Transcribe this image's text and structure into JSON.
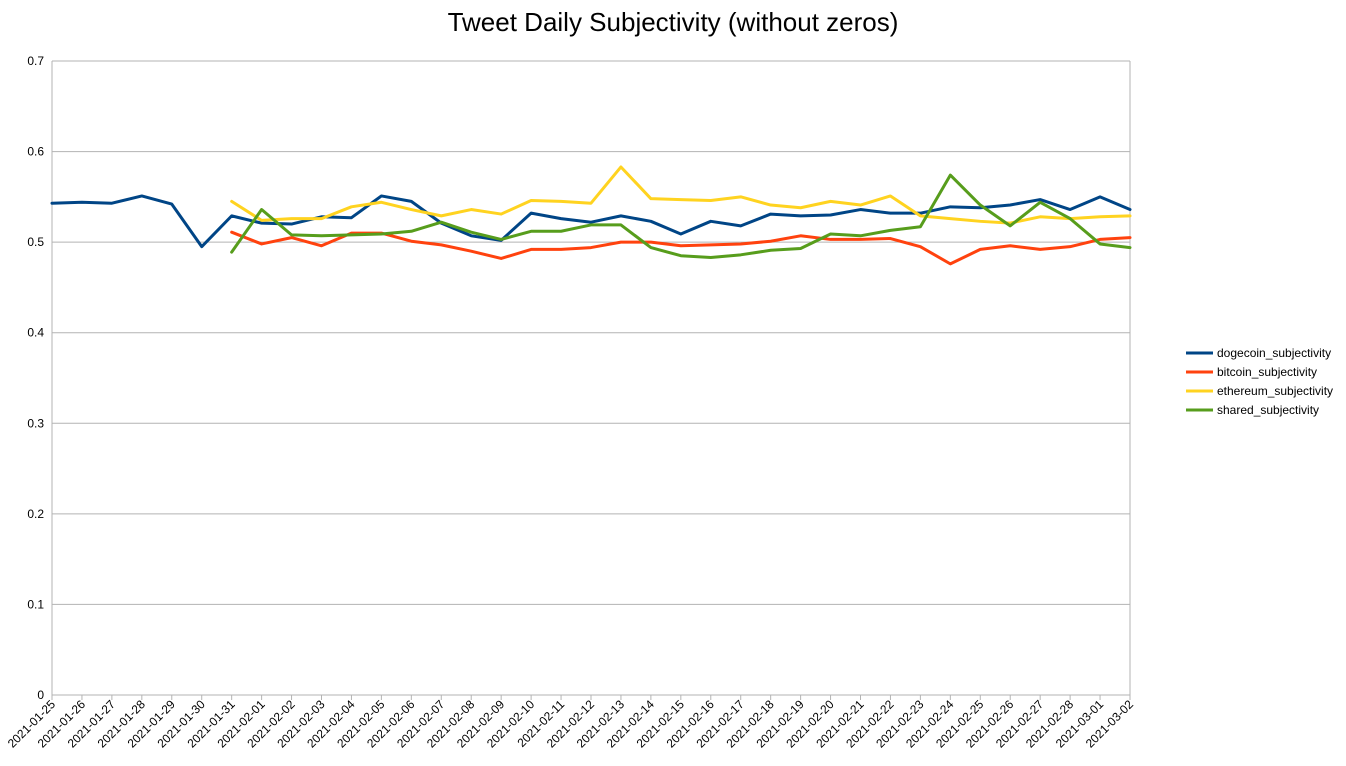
{
  "chart_data": {
    "type": "line",
    "title": "Tweet Daily Subjectivity (without zeros)",
    "xlabel": "",
    "ylabel": "",
    "ylim": [
      0,
      0.7
    ],
    "yticks": [
      "0",
      "0.1",
      "0.2",
      "0.3",
      "0.4",
      "0.5",
      "0.6",
      "0.7"
    ],
    "grid": true,
    "legend_position": "right",
    "categories": [
      "2021-01-25",
      "2021-01-26",
      "2021-01-27",
      "2021-01-28",
      "2021-01-29",
      "2021-01-30",
      "2021-01-31",
      "2021-02-01",
      "2021-02-02",
      "2021-02-03",
      "2021-02-04",
      "2021-02-05",
      "2021-02-06",
      "2021-02-07",
      "2021-02-08",
      "2021-02-09",
      "2021-02-10",
      "2021-02-11",
      "2021-02-12",
      "2021-02-13",
      "2021-02-14",
      "2021-02-15",
      "2021-02-16",
      "2021-02-17",
      "2021-02-18",
      "2021-02-19",
      "2021-02-20",
      "2021-02-21",
      "2021-02-22",
      "2021-02-23",
      "2021-02-24",
      "2021-02-25",
      "2021-02-26",
      "2021-02-27",
      "2021-02-28",
      "2021-03-01",
      "2021-03-02"
    ],
    "series": [
      {
        "name": "dogecoin_subjectivity",
        "color": "#004586",
        "values": [
          0.543,
          0.544,
          0.543,
          0.551,
          0.542,
          0.495,
          0.529,
          0.521,
          0.52,
          0.528,
          0.527,
          0.551,
          0.545,
          0.521,
          0.507,
          0.502,
          0.532,
          0.526,
          0.522,
          0.529,
          0.523,
          0.509,
          0.523,
          0.518,
          0.531,
          0.529,
          0.53,
          0.536,
          0.532,
          0.532,
          0.539,
          0.538,
          0.541,
          0.547,
          0.536,
          0.55,
          0.536
        ]
      },
      {
        "name": "bitcoin_subjectivity",
        "color": "#ff420e",
        "values": [
          null,
          null,
          null,
          null,
          null,
          null,
          0.511,
          0.498,
          0.505,
          0.496,
          0.51,
          0.51,
          0.501,
          0.497,
          0.49,
          0.482,
          0.492,
          0.492,
          0.494,
          0.5,
          0.5,
          0.496,
          0.497,
          0.498,
          0.501,
          0.507,
          0.503,
          0.503,
          0.504,
          0.495,
          0.476,
          0.492,
          0.496,
          0.492,
          0.495,
          0.503,
          0.505
        ]
      },
      {
        "name": "ethereum_subjectivity",
        "color": "#ffd320",
        "values": [
          null,
          null,
          null,
          null,
          null,
          null,
          0.545,
          0.524,
          0.526,
          0.526,
          0.539,
          0.544,
          0.536,
          0.529,
          0.536,
          0.531,
          0.546,
          0.545,
          0.543,
          0.583,
          0.548,
          0.547,
          0.546,
          0.55,
          0.541,
          0.538,
          0.545,
          0.541,
          0.551,
          0.529,
          0.526,
          0.523,
          0.521,
          0.528,
          0.526,
          0.528,
          0.529
        ]
      },
      {
        "name": "shared_subjectivity",
        "color": "#579d1c",
        "values": [
          null,
          null,
          null,
          null,
          null,
          null,
          0.489,
          0.536,
          0.508,
          0.507,
          0.508,
          0.509,
          0.512,
          0.522,
          0.511,
          0.503,
          0.512,
          0.512,
          0.519,
          0.519,
          0.494,
          0.485,
          0.483,
          0.486,
          0.491,
          0.493,
          0.509,
          0.507,
          0.513,
          0.517,
          0.574,
          0.541,
          0.518,
          0.544,
          0.526,
          0.498,
          0.494
        ]
      }
    ]
  }
}
